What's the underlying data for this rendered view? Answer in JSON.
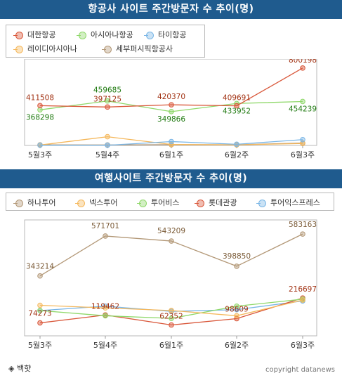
{
  "chart_data": [
    {
      "type": "line",
      "title": "항공사 사이트 주간방문자 수 추이(명)",
      "categories": [
        "5월3주",
        "5월4주",
        "6월1주",
        "6월2주",
        "6월3주"
      ],
      "series": [
        {
          "name": "대한항공",
          "color": "#d9573a",
          "values": [
            411508,
            397125,
            420370,
            409691,
            800198
          ],
          "labeled": true
        },
        {
          "name": "아시아나항공",
          "color": "#8fd86a",
          "values": [
            368298,
            459685,
            349866,
            433952,
            454239
          ],
          "labeled": true
        },
        {
          "name": "타이항공",
          "color": "#7ab6e6",
          "values": [
            2000,
            2000,
            40000,
            12000,
            60000
          ],
          "labeled": false
        },
        {
          "name": "레이디아시아나",
          "color": "#f5b85c",
          "values": [
            4000,
            90000,
            10000,
            6000,
            20000
          ],
          "labeled": false
        },
        {
          "name": "세부퍼시픽항공사",
          "color": "#b39877",
          "values": [
            6000,
            5000,
            8000,
            7000,
            25000
          ],
          "labeled": false
        }
      ],
      "ylim": [
        0,
        850000
      ],
      "grid": false,
      "legend_position": "top-left"
    },
    {
      "type": "line",
      "title": "여행사이트 주간방문자 수 추이(명)",
      "categories": [
        "5월3주",
        "5월4주",
        "6월1주",
        "6월2주",
        "6월3주"
      ],
      "series": [
        {
          "name": "하나투어",
          "color": "#b39877",
          "values": [
            343214,
            571701,
            543209,
            398850,
            583163
          ],
          "labeled": true
        },
        {
          "name": "넥스투어",
          "color": "#f5b85c",
          "values": [
            175000,
            160000,
            145000,
            115000,
            205000
          ],
          "labeled": false
        },
        {
          "name": "투어비스",
          "color": "#8fd86a",
          "values": [
            145000,
            115000,
            100000,
            170000,
            210000
          ],
          "labeled": false
        },
        {
          "name": "롯데관광",
          "color": "#d9573a",
          "values": [
            74273,
            119462,
            62352,
            98609,
            216697
          ],
          "labeled": true
        },
        {
          "name": "투어익스프레스",
          "color": "#7ab6e6",
          "values": [
            145000,
            170000,
            140000,
            150000,
            200000
          ],
          "labeled": false
        }
      ],
      "ylim": [
        0,
        640000
      ],
      "grid": false,
      "legend_position": "top-left"
    }
  ],
  "footer": {
    "source": "◈ 백햣",
    "copyright": "copyright datanews"
  }
}
